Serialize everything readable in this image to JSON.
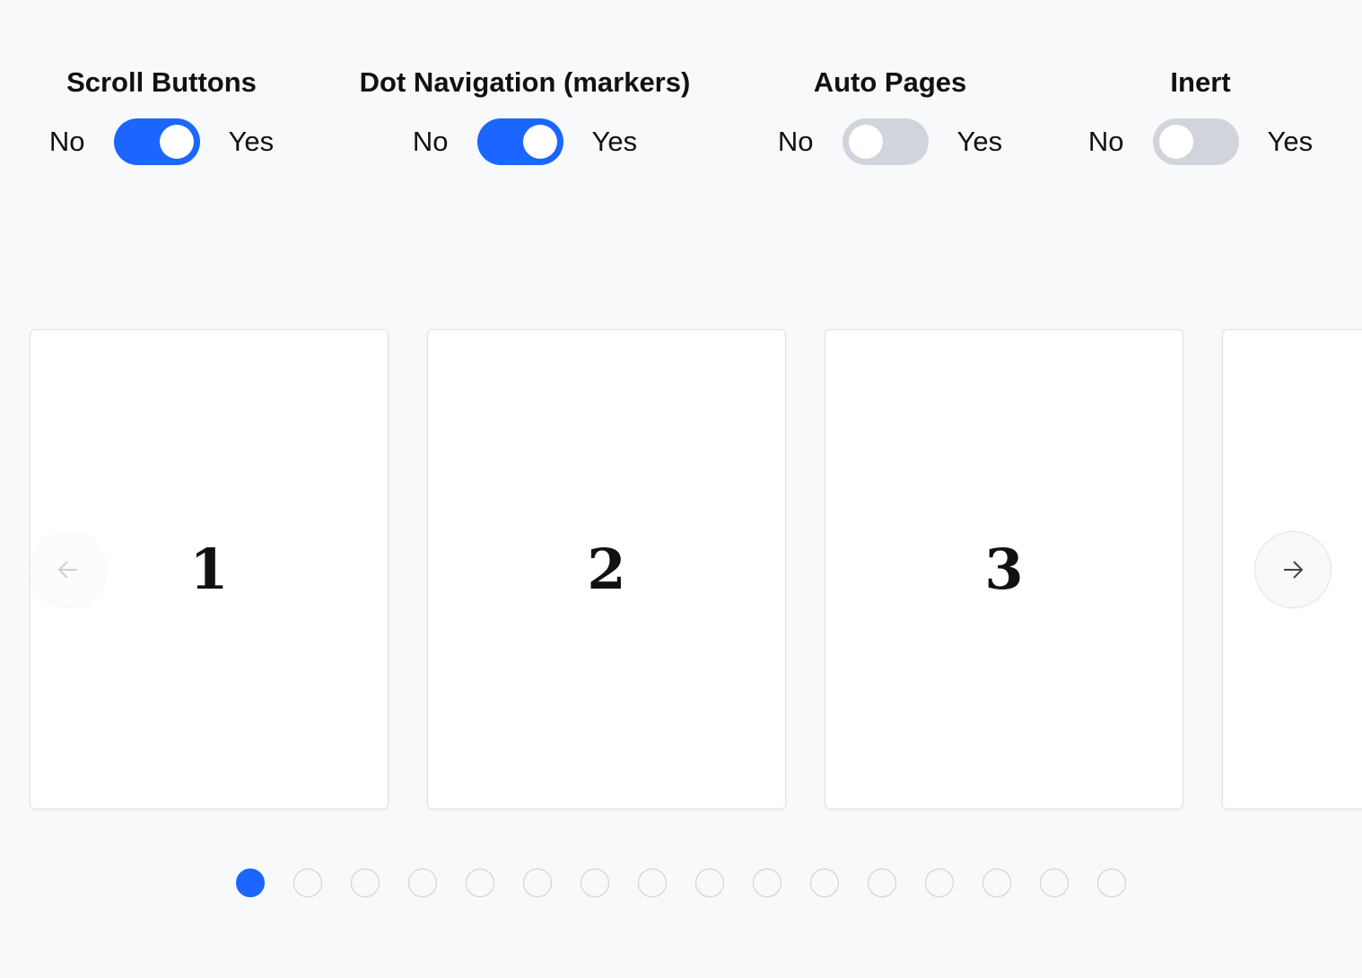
{
  "toggles": [
    {
      "label": "Scroll Buttons",
      "off": "No",
      "on": "Yes",
      "value": true
    },
    {
      "label": "Dot Navigation (markers)",
      "off": "No",
      "on": "Yes",
      "value": true
    },
    {
      "label": "Auto Pages",
      "off": "No",
      "on": "Yes",
      "value": false
    },
    {
      "label": "Inert",
      "off": "No",
      "on": "Yes",
      "value": false
    }
  ],
  "cards": [
    "1",
    "2",
    "3",
    ""
  ],
  "carousel": {
    "prev_icon": "arrow-left-icon",
    "next_icon": "arrow-right-icon",
    "prev_disabled": true,
    "dot_count": 16,
    "active_dot": 0
  },
  "colors": {
    "accent": "#1a66ff",
    "toggle_off": "#d1d5db"
  }
}
